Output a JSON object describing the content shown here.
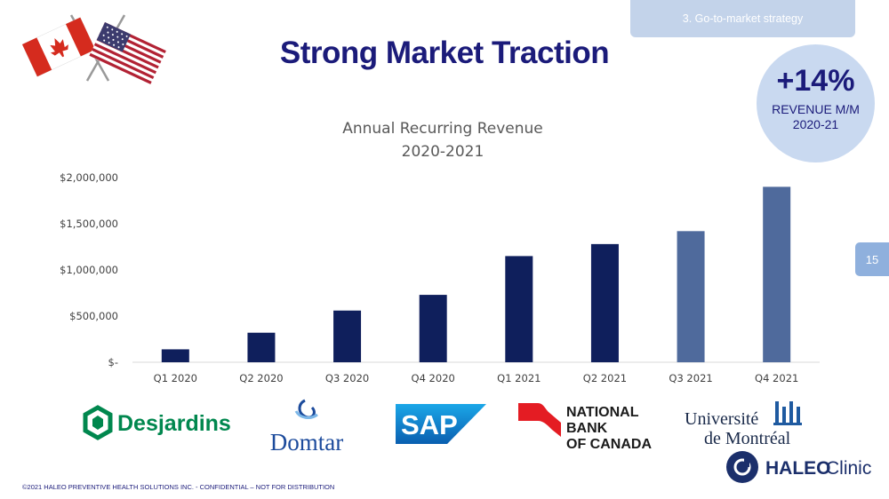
{
  "header": {
    "section_label": "3. Go-to-market strategy",
    "title": "Strong Market Traction"
  },
  "kpi": {
    "value": "+14%",
    "label": "REVENUE M/M",
    "sub": "2020-21"
  },
  "page_number": "15",
  "chart_data": {
    "type": "bar",
    "title_lines": [
      "Annual Recurring Revenue",
      "2020-2021"
    ],
    "categories": [
      "Q1 2020",
      "Q2 2020",
      "Q3 2020",
      "Q4 2020",
      "Q1 2021",
      "Q2 2021",
      "Q3 2021",
      "Q4 2021"
    ],
    "values": [
      140000,
      320000,
      560000,
      730000,
      1150000,
      1280000,
      1420000,
      1900000
    ],
    "ylim": [
      0,
      2000000
    ],
    "yticks": [
      0,
      500000,
      1000000,
      1500000,
      2000000
    ],
    "ytick_labels": [
      "$-",
      "$500,000",
      "$1,000,000",
      "$1,500,000",
      "$2,000,000"
    ],
    "bar_colors": [
      "#0f1f5c",
      "#0f1f5c",
      "#0f1f5c",
      "#0f1f5c",
      "#0f1f5c",
      "#0f1f5c",
      "#4f6a9c",
      "#4f6a9c"
    ],
    "grid": false
  },
  "logos": {
    "desjardins": "Desjardins",
    "domtar": "Domtar",
    "sap": "SAP",
    "nbc_lines": [
      "NATIONAL",
      "BANK",
      "OF CANADA"
    ],
    "udem_lines": [
      "Université",
      "de Montréal"
    ],
    "haleo_bold": "HALEO",
    "haleo_light": "Clinic"
  },
  "footer": "©2021 HALEO PREVENTIVE HEALTH SOLUTIONS INC. -  CONFIDENTIAL – NOT FOR DISTRIBUTION",
  "colors": {
    "brand_navy": "#1b1b7a",
    "bar_dark": "#0f1f5c",
    "bar_light": "#4f6a9c",
    "kpi_circle": "#c9d9f0",
    "tab": "#c3d3ea"
  },
  "icons": [
    "canada-flag-icon",
    "usa-flag-icon",
    "desjardins-hexagon-icon",
    "domtar-swirl-icon",
    "nbc-flag-icon",
    "udem-emblem-icon",
    "haleo-logo-icon"
  ]
}
